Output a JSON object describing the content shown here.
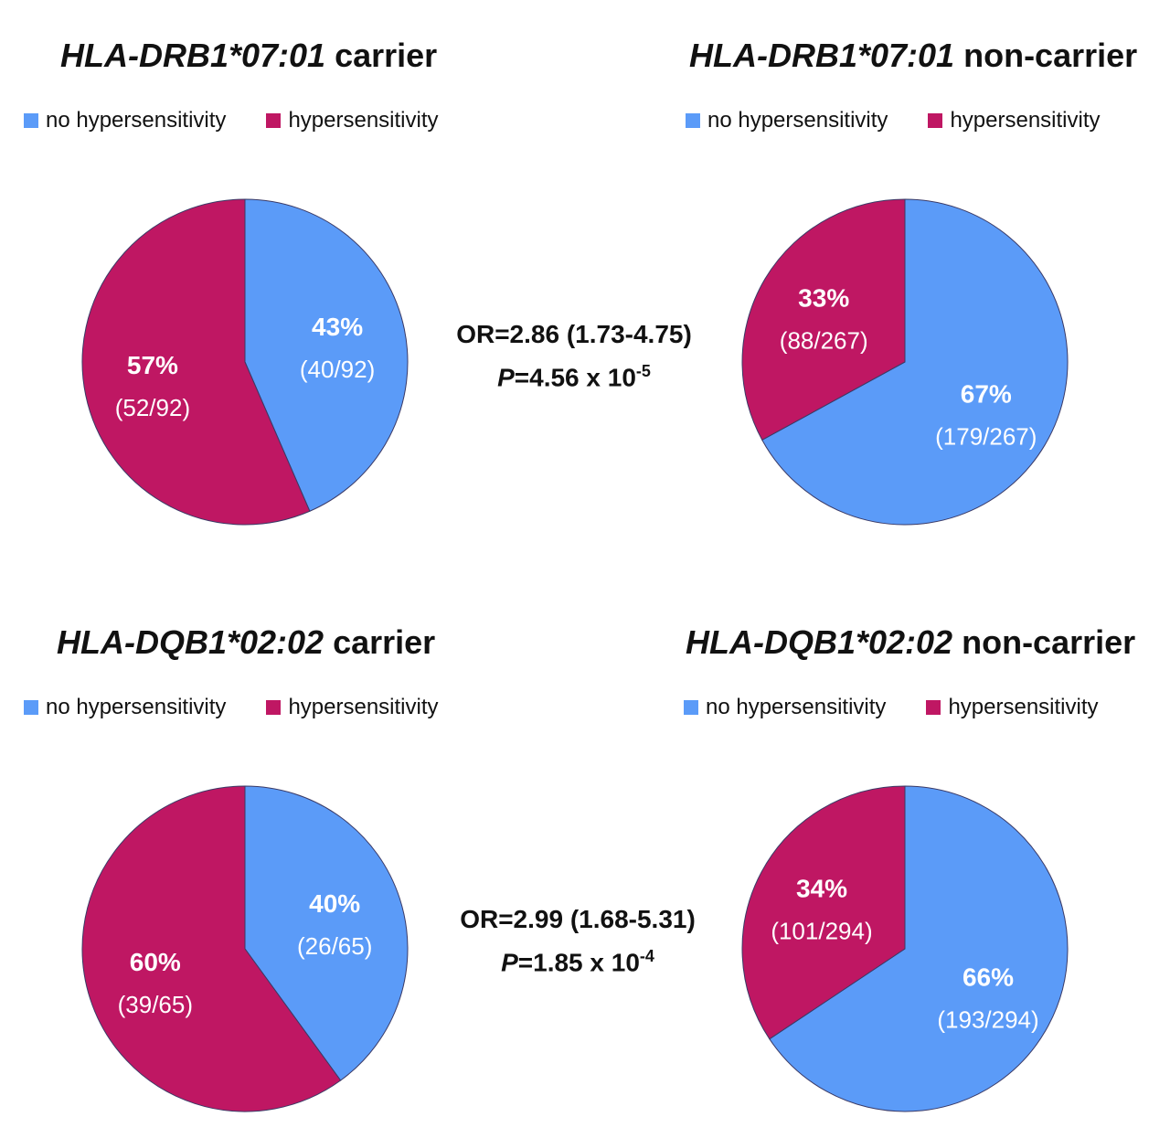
{
  "legend": {
    "no": "no hypersensitivity",
    "yes": "hypersensitivity"
  },
  "colors": {
    "no": "#5b9bf8",
    "yes": "#bf1763",
    "stroke": "#3a3a66"
  },
  "chart_data": [
    {
      "type": "pie",
      "gene": "HLA-DRB1*07:01",
      "group": "carrier",
      "slices": [
        {
          "label": "no hypersensitivity",
          "percent": "43%",
          "count": "(40/92)",
          "value": 40
        },
        {
          "label": "hypersensitivity",
          "percent": "57%",
          "count": "(52/92)",
          "value": 52
        }
      ]
    },
    {
      "type": "pie",
      "gene": "HLA-DRB1*07:01",
      "group": "non-carrier",
      "slices": [
        {
          "label": "no hypersensitivity",
          "percent": "67%",
          "count": "(179/267)",
          "value": 179
        },
        {
          "label": "hypersensitivity",
          "percent": "33%",
          "count": "(88/267)",
          "value": 88
        }
      ]
    },
    {
      "type": "pie",
      "gene": "HLA-DQB1*02:02",
      "group": "carrier",
      "slices": [
        {
          "label": "no hypersensitivity",
          "percent": "40%",
          "count": "(26/65)",
          "value": 26
        },
        {
          "label": "hypersensitivity",
          "percent": "60%",
          "count": "(39/65)",
          "value": 39
        }
      ]
    },
    {
      "type": "pie",
      "gene": "HLA-DQB1*02:02",
      "group": "non-carrier",
      "slices": [
        {
          "label": "no hypersensitivity",
          "percent": "66%",
          "count": "(193/294)",
          "value": 193
        },
        {
          "label": "hypersensitivity",
          "percent": "34%",
          "count": "(101/294)",
          "value": 101
        }
      ]
    }
  ],
  "stats": [
    {
      "or_text": "OR=2.86 (1.73-4.75)",
      "p_label": "P",
      "p_text": "=4.56 x 10",
      "p_exp": "-5"
    },
    {
      "or_text": "OR=2.99 (1.68-5.31)",
      "p_label": "P",
      "p_text": "=1.85 x 10",
      "p_exp": "-4"
    }
  ]
}
